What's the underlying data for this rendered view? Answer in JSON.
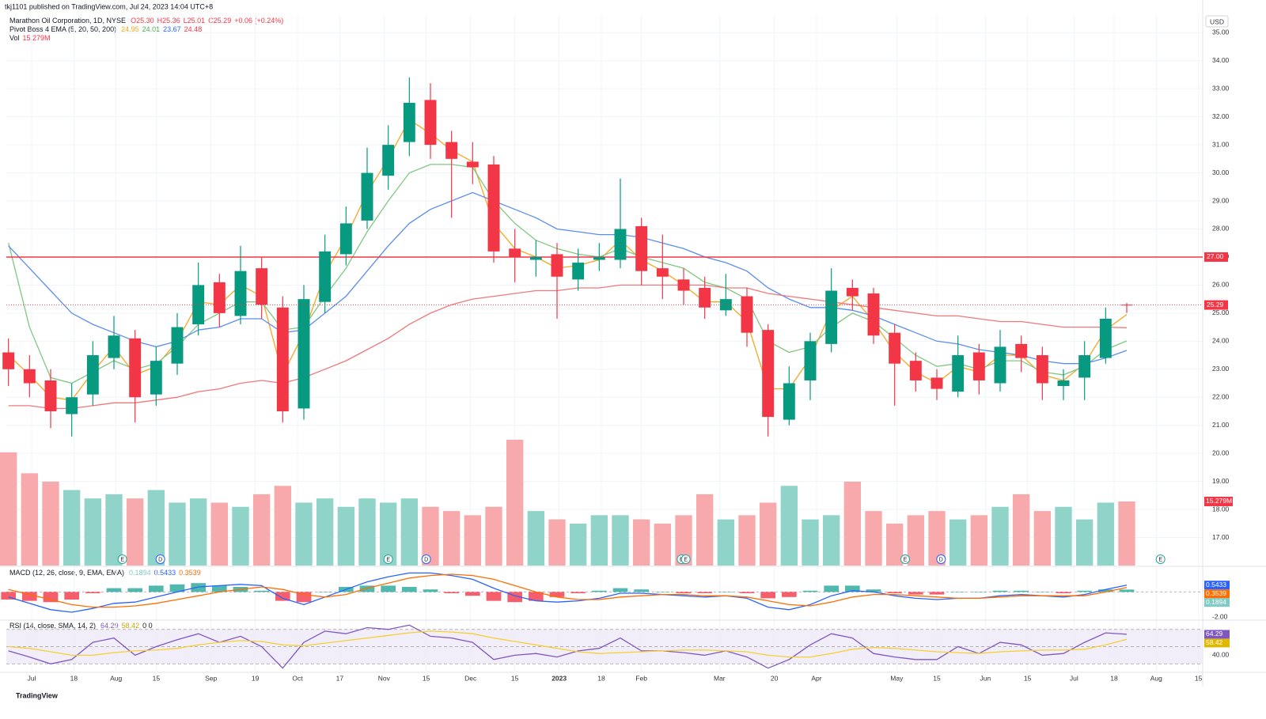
{
  "chart_data": {
    "type": "candlestick",
    "publisher": "tkj1101 published on TradingView.com, Jul 24, 2023 14:04 UTC+8",
    "title": "Marathon Oil Corporation, 1D, NYSE",
    "ohlc_legend": [
      "O25.30",
      "H25.36",
      "L25.01",
      "C25.29"
    ],
    "change_legend": "+0.06 (+0.24%)",
    "currency": "USD",
    "footer": "TradingView",
    "up_color": "#089981",
    "down_color": "#f23645",
    "xlim": [
      -0.1,
      56.6
    ],
    "xticks": [
      {
        "value": 1.1,
        "label": "Jul"
      },
      {
        "value": 3.1,
        "label": "18"
      },
      {
        "value": 5.1,
        "label": "Aug"
      },
      {
        "value": 7.0,
        "label": "15"
      },
      {
        "value": 9.6,
        "label": "Sep"
      },
      {
        "value": 11.7,
        "label": "19"
      },
      {
        "value": 13.7,
        "label": "Oct"
      },
      {
        "value": 15.7,
        "label": "17"
      },
      {
        "value": 17.8,
        "label": "Nov"
      },
      {
        "value": 19.8,
        "label": "15"
      },
      {
        "value": 21.9,
        "label": "Dec"
      },
      {
        "value": 24.0,
        "label": "15"
      },
      {
        "value": 26.1,
        "label": "2023"
      },
      {
        "value": 28.1,
        "label": "18"
      },
      {
        "value": 30.0,
        "label": "Feb"
      },
      {
        "value": 33.7,
        "label": "Mar"
      },
      {
        "value": 36.3,
        "label": "20"
      },
      {
        "value": 38.3,
        "label": "Apr"
      },
      {
        "value": 42.1,
        "label": "May"
      },
      {
        "value": 44.0,
        "label": "15"
      },
      {
        "value": 46.3,
        "label": "Jun"
      },
      {
        "value": 48.3,
        "label": "15"
      },
      {
        "value": 50.5,
        "label": "Jul"
      },
      {
        "value": 52.4,
        "label": "18"
      },
      {
        "value": 54.4,
        "label": "Aug"
      },
      {
        "value": 56.4,
        "label": "15"
      }
    ],
    "ylim": [
      16,
      35.6
    ],
    "yticks": [
      {
        "value": 17,
        "label": "17.00"
      },
      {
        "value": 18,
        "label": "18.00"
      },
      {
        "value": 19,
        "label": "19.00"
      },
      {
        "value": 20,
        "label": "20.00"
      },
      {
        "value": 21,
        "label": "21.00"
      },
      {
        "value": 22,
        "label": "22.00"
      },
      {
        "value": 23,
        "label": "23.00"
      },
      {
        "value": 24,
        "label": "24.00"
      },
      {
        "value": 25,
        "label": "25.00"
      },
      {
        "value": 26,
        "label": "26.00"
      },
      {
        "value": 27,
        "label": "27.00"
      },
      {
        "value": 28,
        "label": "28.00"
      },
      {
        "value": 29,
        "label": "29.00"
      },
      {
        "value": 30,
        "label": "30.00"
      },
      {
        "value": 31,
        "label": "31.00"
      },
      {
        "value": 32,
        "label": "32.00"
      },
      {
        "value": 33,
        "label": "33.00"
      },
      {
        "value": 34,
        "label": "34.00"
      },
      {
        "value": 35,
        "label": "35.00"
      }
    ],
    "grid": true,
    "hline": {
      "value": 27,
      "label": "27.00",
      "color": "#f23645"
    },
    "candles": [
      [
        23.6,
        24.1,
        22.4,
        23.0
      ],
      [
        23.0,
        23.5,
        22.0,
        22.5
      ],
      [
        22.6,
        23.0,
        20.9,
        21.5
      ],
      [
        21.4,
        22.5,
        20.6,
        22.0
      ],
      [
        22.1,
        24.0,
        21.7,
        23.5
      ],
      [
        23.4,
        24.9,
        23.0,
        24.2
      ],
      [
        24.1,
        24.4,
        21.1,
        22.0
      ],
      [
        22.1,
        23.8,
        21.7,
        23.3
      ],
      [
        23.2,
        25.0,
        22.8,
        24.5
      ],
      [
        24.6,
        26.8,
        24.2,
        26.0
      ],
      [
        26.1,
        26.4,
        24.5,
        25.0
      ],
      [
        24.9,
        27.4,
        24.6,
        26.5
      ],
      [
        26.6,
        27.0,
        24.8,
        25.3
      ],
      [
        25.2,
        25.6,
        21.1,
        21.5
      ],
      [
        21.6,
        26.0,
        21.2,
        25.5
      ],
      [
        25.4,
        27.8,
        25.0,
        27.2
      ],
      [
        27.1,
        28.8,
        26.7,
        28.2
      ],
      [
        28.3,
        30.9,
        28.0,
        30.0
      ],
      [
        29.9,
        31.7,
        29.4,
        31.0
      ],
      [
        31.1,
        33.4,
        30.6,
        32.5
      ],
      [
        32.6,
        33.2,
        30.5,
        31.0
      ],
      [
        31.1,
        31.5,
        28.4,
        30.5
      ],
      [
        30.4,
        31.1,
        29.6,
        30.2
      ],
      [
        30.3,
        30.6,
        26.8,
        27.2
      ],
      [
        27.3,
        28.0,
        26.1,
        27.0
      ],
      [
        26.9,
        27.6,
        26.3,
        27.0
      ],
      [
        27.1,
        27.5,
        24.8,
        26.3
      ],
      [
        26.2,
        27.3,
        25.8,
        26.8
      ],
      [
        26.9,
        27.5,
        26.5,
        27.0
      ],
      [
        26.9,
        29.8,
        26.6,
        28.0
      ],
      [
        28.1,
        28.4,
        26.0,
        26.5
      ],
      [
        26.6,
        27.8,
        25.5,
        26.3
      ],
      [
        26.2,
        26.6,
        25.3,
        25.8
      ],
      [
        25.9,
        26.3,
        24.8,
        25.2
      ],
      [
        25.1,
        26.4,
        24.9,
        25.5
      ],
      [
        25.6,
        25.9,
        23.8,
        24.3
      ],
      [
        24.4,
        24.6,
        20.6,
        21.3
      ],
      [
        21.2,
        23.1,
        21.0,
        22.5
      ],
      [
        22.6,
        24.3,
        21.9,
        24.0
      ],
      [
        23.9,
        26.6,
        23.6,
        25.8
      ],
      [
        25.9,
        26.2,
        25.1,
        25.6
      ],
      [
        25.7,
        25.9,
        23.9,
        24.2
      ],
      [
        24.3,
        24.6,
        21.7,
        23.2
      ],
      [
        23.3,
        23.6,
        22.2,
        22.6
      ],
      [
        22.7,
        23.0,
        21.9,
        22.3
      ],
      [
        22.2,
        24.2,
        22.0,
        23.5
      ],
      [
        23.6,
        23.9,
        22.1,
        22.6
      ],
      [
        22.5,
        24.4,
        22.2,
        23.8
      ],
      [
        23.9,
        24.2,
        22.9,
        23.4
      ],
      [
        23.5,
        23.8,
        21.9,
        22.5
      ],
      [
        22.4,
        23.0,
        21.9,
        22.6
      ],
      [
        22.7,
        24.0,
        21.9,
        23.5
      ],
      [
        23.4,
        25.2,
        23.2,
        24.8
      ],
      [
        25.3,
        25.36,
        25.01,
        25.29
      ]
    ],
    "ema": {
      "name": "Pivot Boss 4 EMA (5, 20, 50, 200)",
      "series": [
        {
          "name": "EMA 5",
          "color": "#f6a623",
          "values": [
            23.5,
            22.8,
            22.0,
            21.9,
            22.9,
            23.8,
            22.8,
            23.1,
            24.0,
            25.4,
            25.3,
            26.0,
            25.6,
            22.8,
            24.3,
            26.4,
            27.7,
            29.3,
            30.5,
            31.9,
            31.4,
            30.8,
            30.4,
            28.2,
            27.3,
            27.0,
            26.6,
            26.7,
            26.9,
            27.6,
            26.9,
            26.5,
            26.0,
            25.4,
            25.4,
            24.7,
            22.3,
            22.3,
            23.4,
            25.1,
            25.6,
            24.7,
            23.6,
            22.9,
            22.5,
            23.1,
            22.9,
            23.5,
            23.5,
            22.8,
            22.6,
            23.2,
            24.4,
            24.95
          ]
        },
        {
          "name": "EMA 20",
          "color": "#7fc87f",
          "values": [
            27.5,
            24.5,
            22.7,
            22.5,
            22.9,
            23.3,
            23.0,
            23.2,
            23.8,
            24.6,
            25.0,
            25.4,
            25.4,
            24.4,
            24.5,
            25.6,
            26.6,
            27.9,
            29.0,
            30.0,
            30.3,
            30.3,
            30.2,
            29.0,
            28.2,
            27.6,
            27.3,
            27.1,
            27.0,
            27.3,
            27.0,
            26.8,
            26.6,
            26.1,
            25.9,
            25.5,
            24.0,
            23.6,
            23.8,
            24.5,
            25.0,
            24.7,
            24.1,
            23.5,
            23.1,
            23.2,
            23.0,
            23.3,
            23.3,
            22.9,
            22.8,
            23.1,
            23.7,
            24.01
          ]
        },
        {
          "name": "EMA 50",
          "color": "#5b8def",
          "values": [
            27.4,
            26.6,
            25.8,
            25.0,
            24.6,
            24.3,
            24.0,
            23.8,
            24.0,
            24.4,
            24.5,
            24.8,
            24.8,
            24.3,
            24.4,
            25.0,
            25.6,
            26.5,
            27.4,
            28.2,
            28.7,
            29.0,
            29.3,
            29.0,
            28.7,
            28.4,
            28.0,
            27.9,
            27.8,
            27.8,
            27.7,
            27.5,
            27.3,
            27.0,
            26.8,
            26.5,
            25.9,
            25.5,
            25.2,
            25.2,
            25.1,
            24.9,
            24.6,
            24.3,
            24.0,
            23.9,
            23.7,
            23.6,
            23.5,
            23.3,
            23.2,
            23.2,
            23.4,
            23.67
          ]
        },
        {
          "name": "EMA 200",
          "color": "#f07878",
          "values": [
            21.7,
            21.7,
            21.6,
            21.6,
            21.7,
            21.8,
            21.8,
            21.9,
            22.0,
            22.2,
            22.3,
            22.5,
            22.6,
            22.5,
            22.7,
            23.0,
            23.3,
            23.7,
            24.1,
            24.6,
            25.0,
            25.3,
            25.5,
            25.6,
            25.7,
            25.8,
            25.8,
            25.9,
            25.9,
            26.0,
            26.0,
            26.0,
            26.0,
            26.0,
            25.9,
            25.9,
            25.7,
            25.6,
            25.5,
            25.4,
            25.3,
            25.2,
            25.1,
            25.0,
            24.9,
            24.9,
            24.8,
            24.7,
            24.7,
            24.6,
            24.5,
            24.5,
            24.5,
            24.48
          ]
        }
      ]
    },
    "volume": {
      "name": "Vol",
      "label": "15.279M",
      "vlim": [
        0,
        33
      ],
      "values": [
        27,
        22,
        20,
        18,
        16,
        17,
        16,
        18,
        15,
        16,
        15,
        14,
        17,
        19,
        15,
        16,
        14,
        16,
        15,
        16,
        14,
        13,
        12,
        14,
        30,
        13,
        11,
        10,
        12,
        12,
        11,
        10,
        12,
        17,
        11,
        12,
        15,
        19,
        11,
        12,
        20,
        13,
        10,
        12,
        13,
        11,
        12,
        14,
        17,
        13,
        14,
        11,
        15,
        15.279
      ]
    },
    "events": [
      {
        "label": "E",
        "x": 5.4
      },
      {
        "label": "D",
        "x": 7.2
      },
      {
        "label": "E",
        "x": 18.0
      },
      {
        "label": "D",
        "x": 19.8
      },
      {
        "label": "E",
        "x": 31.9
      },
      {
        "label": "E",
        "x": 32.1
      },
      {
        "label": "E",
        "x": 42.5
      },
      {
        "label": "D",
        "x": 44.2
      },
      {
        "label": "E",
        "x": 54.6
      }
    ],
    "macd": {
      "name": "MACD (12, 26, close, 9, EMA, EMA)",
      "ylim": [
        -2.1,
        1.9
      ],
      "yticks": [
        {
          "value": -2,
          "label": "-2.00"
        }
      ],
      "histogram": {
        "name": "Histogram",
        "values": [
          -0.6,
          -0.7,
          -0.8,
          -0.6,
          -0.1,
          0.3,
          0.3,
          0.5,
          0.6,
          0.7,
          0.5,
          0.4,
          0.1,
          -0.7,
          -0.8,
          0.0,
          0.4,
          0.5,
          0.5,
          0.4,
          0.2,
          -0.1,
          -0.3,
          -0.7,
          -0.8,
          -0.7,
          -0.4,
          -0.1,
          0.1,
          0.3,
          0.2,
          0.0,
          -0.1,
          -0.1,
          0.0,
          -0.1,
          -0.5,
          -0.4,
          0.1,
          0.5,
          0.5,
          0.2,
          -0.1,
          -0.2,
          -0.2,
          0.0,
          0.0,
          0.1,
          0.1,
          0.0,
          -0.1,
          0.1,
          0.2,
          0.1894
        ]
      },
      "series": [
        {
          "name": "MACD",
          "color": "#2962ff",
          "values": [
            -0.4,
            -0.9,
            -1.4,
            -1.6,
            -1.3,
            -0.9,
            -0.8,
            -0.4,
            0.0,
            0.4,
            0.5,
            0.6,
            0.5,
            -0.5,
            -1.0,
            -0.4,
            0.2,
            0.8,
            1.2,
            1.5,
            1.5,
            1.3,
            1.0,
            0.3,
            -0.3,
            -0.7,
            -0.8,
            -0.7,
            -0.5,
            -0.1,
            -0.1,
            -0.2,
            -0.3,
            -0.4,
            -0.3,
            -0.5,
            -1.2,
            -1.4,
            -1.0,
            -0.3,
            0.1,
            0.0,
            -0.3,
            -0.5,
            -0.6,
            -0.5,
            -0.5,
            -0.3,
            -0.2,
            -0.3,
            -0.4,
            -0.2,
            0.2,
            0.5433
          ]
        },
        {
          "name": "Signal",
          "color": "#ff6d00",
          "values": [
            0.2,
            -0.2,
            -0.6,
            -1.0,
            -1.2,
            -1.2,
            -1.1,
            -0.9,
            -0.6,
            -0.3,
            0.0,
            0.2,
            0.4,
            0.2,
            -0.2,
            -0.4,
            -0.2,
            0.3,
            0.7,
            1.1,
            1.3,
            1.4,
            1.3,
            1.0,
            0.5,
            0.0,
            -0.4,
            -0.6,
            -0.6,
            -0.4,
            -0.3,
            -0.2,
            -0.2,
            -0.3,
            -0.3,
            -0.4,
            -0.7,
            -1.0,
            -1.1,
            -0.8,
            -0.4,
            -0.2,
            -0.2,
            -0.3,
            -0.4,
            -0.5,
            -0.5,
            -0.4,
            -0.3,
            -0.3,
            -0.3,
            -0.3,
            0.0,
            0.3539
          ]
        }
      ]
    },
    "rsi": {
      "name": "RSI (14, close, SMA, 14, 2)",
      "tail": "0  0",
      "ylim": [
        22,
        78
      ],
      "yticks": [
        {
          "value": 40,
          "label": "40.00"
        }
      ],
      "bands": [
        30,
        50,
        70
      ],
      "series": [
        {
          "name": "RSI",
          "color": "#7e57c2",
          "values": [
            45,
            38,
            30,
            35,
            55,
            60,
            40,
            50,
            58,
            65,
            55,
            62,
            50,
            25,
            55,
            68,
            65,
            72,
            70,
            75,
            62,
            60,
            55,
            35,
            40,
            42,
            38,
            45,
            48,
            60,
            45,
            45,
            43,
            40,
            45,
            38,
            25,
            35,
            52,
            65,
            60,
            42,
            38,
            35,
            35,
            50,
            42,
            55,
            52,
            40,
            42,
            55,
            66,
            64.29
          ]
        },
        {
          "name": "RSI SMA",
          "color": "#f5d033",
          "values": [
            50,
            48,
            44,
            40,
            40,
            43,
            45,
            46,
            48,
            52,
            55,
            57,
            56,
            52,
            51,
            54,
            57,
            60,
            63,
            66,
            68,
            67,
            65,
            60,
            56,
            52,
            48,
            44,
            42,
            43,
            44,
            45,
            46,
            46,
            45,
            44,
            40,
            38,
            38,
            42,
            47,
            49,
            48,
            46,
            44,
            43,
            42,
            44,
            45,
            46,
            46,
            47,
            52,
            58.42
          ]
        }
      ]
    }
  }
}
